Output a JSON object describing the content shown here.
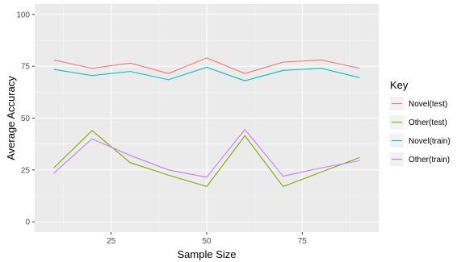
{
  "chart_data": {
    "type": "line",
    "title": "",
    "xlabel": "Sample Size",
    "ylabel": "Average Accuracy",
    "xlim": [
      5,
      95
    ],
    "ylim": [
      -5,
      105
    ],
    "x_ticks": [
      25,
      50,
      75
    ],
    "y_ticks": [
      0,
      25,
      50,
      75,
      100
    ],
    "grid": true,
    "legend_title": "Key",
    "legend_position": "right",
    "x": [
      10,
      20,
      30,
      40,
      50,
      60,
      70,
      80,
      90
    ],
    "series": [
      {
        "name": "Novel(test)",
        "color": "#F8766D",
        "values": [
          78,
          74,
          76.5,
          71.5,
          79,
          71.5,
          77,
          78,
          74
        ]
      },
      {
        "name": "Other(test)",
        "color": "#7CAE00",
        "values": [
          26,
          44,
          28.5,
          22.5,
          17,
          41.5,
          17,
          24,
          31
        ]
      },
      {
        "name": "Novel(train)",
        "color": "#00BFC4",
        "values": [
          73.5,
          70.5,
          72.5,
          68.5,
          74.5,
          68,
          73,
          74,
          69.5
        ]
      },
      {
        "name": "Other(train)",
        "color": "#C77CFF",
        "values": [
          23.5,
          40,
          32,
          25,
          21.5,
          44.5,
          22,
          26,
          29.5
        ]
      }
    ]
  }
}
